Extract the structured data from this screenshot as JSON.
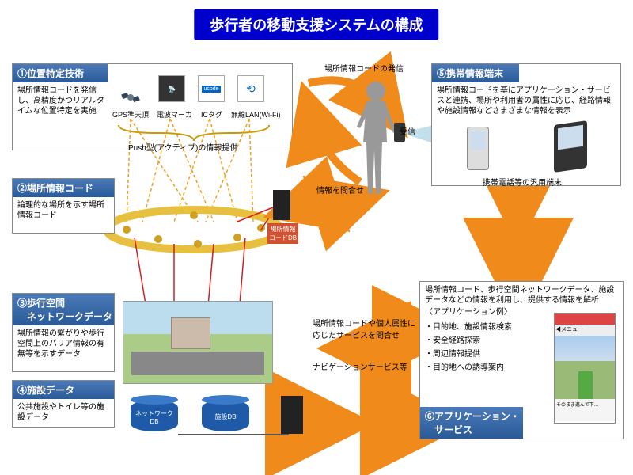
{
  "title": "歩行者の移動支援システムの構成",
  "sections": {
    "s1": {
      "header": "①位置特定技術",
      "body": "場所情報コードを発信し、高精度かつリアルタイムな位置特定を実施"
    },
    "s2": {
      "header": "②場所情報コード",
      "body": "論理的な場所を示す場所情報コード"
    },
    "s3": {
      "header": "③歩行空間\n　ネットワークデータ",
      "body": "場所情報の繋がりや歩行空間上のバリア情報の有無等を示すデータ"
    },
    "s4": {
      "header": "④施設データ",
      "body": "公共施設やトイレ等の施設データ"
    },
    "s5": {
      "header": "⑤携帯情報端末",
      "body": "場所情報コードを基にアプリケーション・サービスと連携、場所や利用者の属性に応じ、経路情報や施設情報などさまざまな情報を表示"
    },
    "s6": {
      "header": "⑥アプリケーション・\n　サービス",
      "body": "場所情報コード、歩行空間ネットワークデータ、施設データなどの情報を利用し、提供する情報を解析"
    },
    "s6_list_title": "〈アプリケーション例〉",
    "s6_list": [
      "・目的地、施設情報検索",
      "・安全経路探索",
      "・周辺情報提供",
      "・目的地への誘導案内"
    ]
  },
  "device_labels": {
    "gps": "GPS準天頂",
    "marker": "電波マーカ",
    "ictag": "ICタグ",
    "wifi": "無線LAN(Wi-Fi)"
  },
  "misc_labels": {
    "push": "Push型(アクティブ)の情報提供",
    "emit": "場所情報コードの発信",
    "receive": "受信",
    "inquiry": "情報を問合せ",
    "personal": "場所情報コードや個人属性に応じたサービスを問合せ",
    "navi": "ナビゲーションサービス等",
    "terminal": "携帯電話等の汎用端末",
    "db1": "ネットワーク\nDB",
    "db2": "施設DB",
    "codedb": "場所情報\nコードDB"
  },
  "colors": {
    "arrow": "#f08a1a",
    "banner": "#0000cc",
    "header_grad_top": "#4a7ab8",
    "header_grad_bot": "#2a5a98",
    "cyl_blue": "#1e5aa8",
    "ring": "#e8c040",
    "red_line": "#d02020"
  }
}
